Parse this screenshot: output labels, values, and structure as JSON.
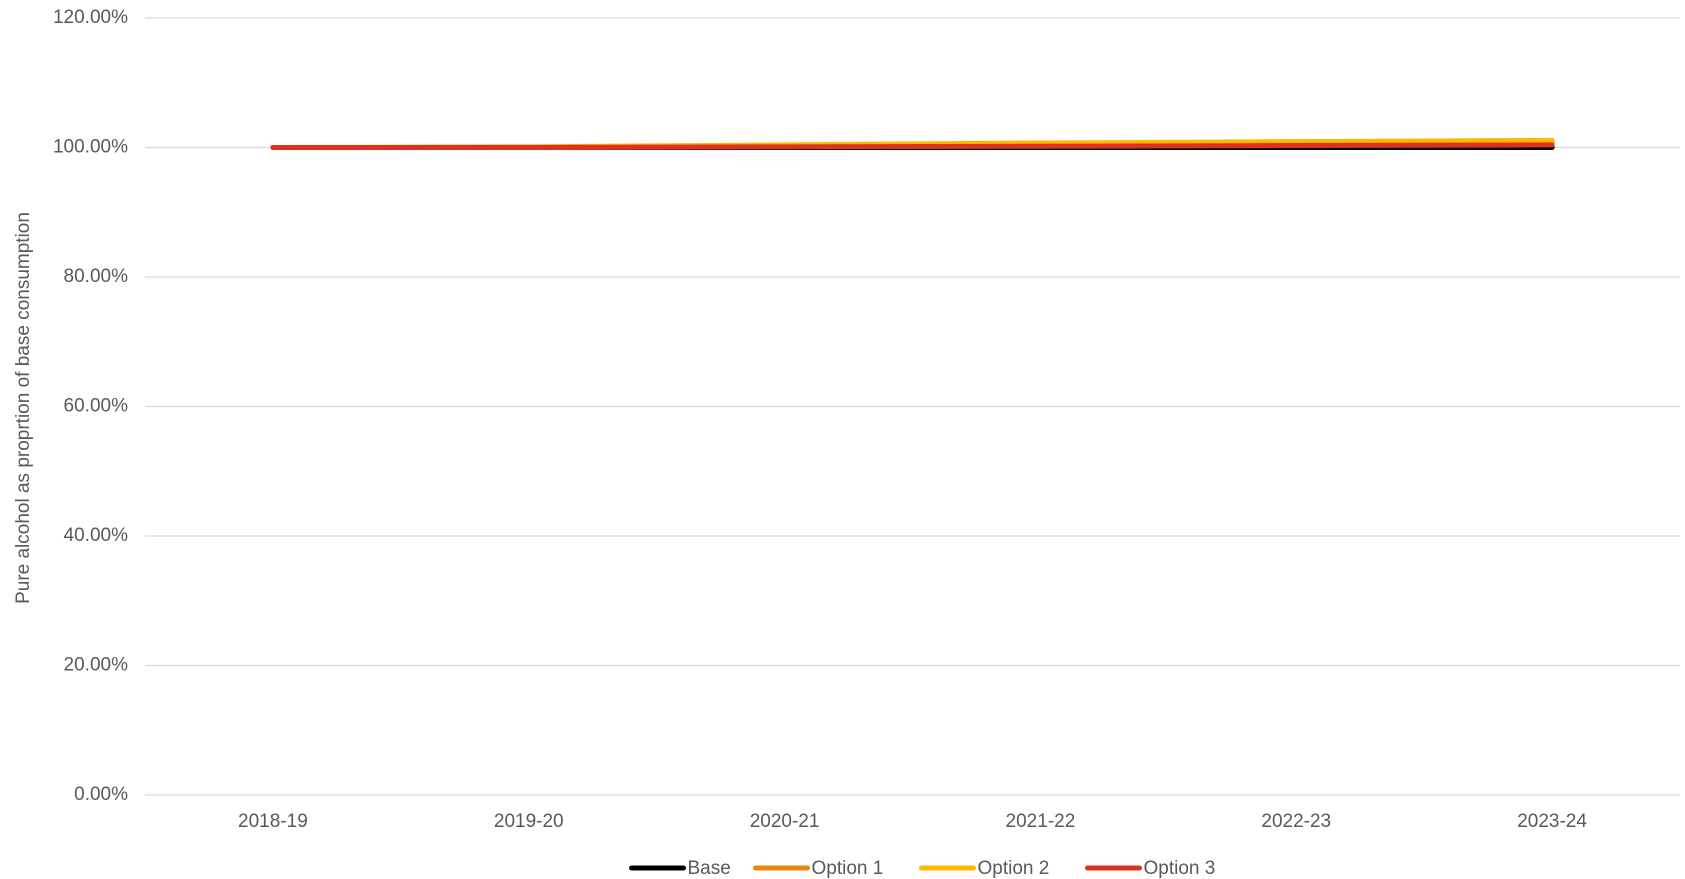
{
  "chart_data": {
    "type": "line",
    "y_label": "Pure alcohol as proprtion of base consumption",
    "categories": [
      "2018-19",
      "2019-20",
      "2020-21",
      "2021-22",
      "2022-23",
      "2023-24"
    ],
    "series": [
      {
        "name": "Base",
        "color": "#000000",
        "values": [
          100,
          100,
          100,
          100,
          100,
          100
        ]
      },
      {
        "name": "Option 1",
        "color": "#e8850c",
        "values": [
          100,
          100,
          100.2,
          100.4,
          100.6,
          100.8
        ]
      },
      {
        "name": "Option 2",
        "color": "#ffb800",
        "values": [
          100,
          100.1,
          100.4,
          100.7,
          100.9,
          101.1
        ]
      },
      {
        "name": "Option 3",
        "color": "#dd3222",
        "values": [
          100,
          100,
          100.1,
          100.2,
          100.3,
          100.4
        ]
      }
    ],
    "ylim": [
      0,
      120
    ],
    "yticks": [
      {
        "value": 0,
        "label": "0.00%"
      },
      {
        "value": 20,
        "label": "20.00%"
      },
      {
        "value": 40,
        "label": "40.00%"
      },
      {
        "value": 60,
        "label": "60.00%"
      },
      {
        "value": 80,
        "label": "80.00%"
      },
      {
        "value": 100,
        "label": "100.00%"
      },
      {
        "value": 120,
        "label": "120.00%"
      }
    ],
    "grid": true,
    "legend": "bottom"
  }
}
